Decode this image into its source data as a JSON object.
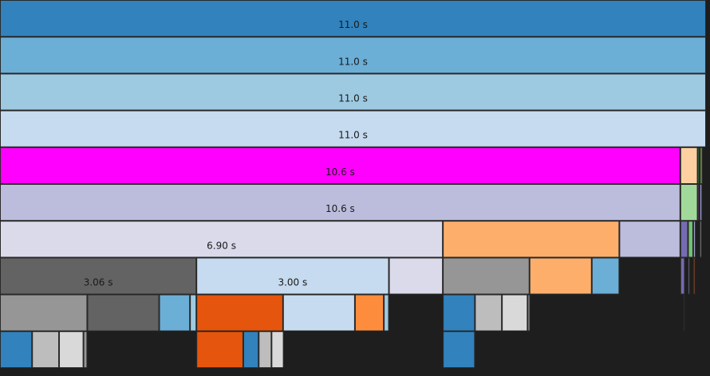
{
  "chart_data": {
    "type": "flame",
    "x_total_seconds": 11.0,
    "frames": [
      {
        "depth": 0,
        "start": 0.0,
        "duration": 11.0,
        "color": "#3182bd",
        "label": "11.0 s"
      },
      {
        "depth": 1,
        "start": 0.0,
        "duration": 11.0,
        "color": "#6baed6",
        "label": "11.0 s"
      },
      {
        "depth": 2,
        "start": 0.0,
        "duration": 11.0,
        "color": "#9ecae1",
        "label": "11.0 s"
      },
      {
        "depth": 3,
        "start": 0.0,
        "duration": 11.0,
        "color": "#c6dbef",
        "label": "11.0 s"
      },
      {
        "depth": 4,
        "start": 0.0,
        "duration": 10.6,
        "color": "#ff00ff",
        "label": "10.6 s"
      },
      {
        "depth": 4,
        "start": 10.6,
        "duration": 0.27,
        "color": "#fdd0a2",
        "label": ""
      },
      {
        "depth": 4,
        "start": 10.87,
        "duration": 0.03,
        "color": "#31a354",
        "label": ""
      },
      {
        "depth": 4,
        "start": 10.9,
        "duration": 0.05,
        "color": "#637939",
        "label": ""
      },
      {
        "depth": 5,
        "start": 0.0,
        "duration": 10.6,
        "color": "#bcbddc",
        "label": "10.6 s"
      },
      {
        "depth": 5,
        "start": 10.6,
        "duration": 0.27,
        "color": "#a1d99b",
        "label": ""
      },
      {
        "depth": 5,
        "start": 10.87,
        "duration": 0.03,
        "color": "#7b4173",
        "label": ""
      },
      {
        "depth": 5,
        "start": 10.9,
        "duration": 0.04,
        "color": "#9c9ede",
        "label": ""
      },
      {
        "depth": 6,
        "start": 0.0,
        "duration": 6.9,
        "color": "#dadaeb",
        "label": "6.90 s"
      },
      {
        "depth": 6,
        "start": 6.9,
        "duration": 2.75,
        "color": "#fdae6b",
        "label": ""
      },
      {
        "depth": 6,
        "start": 9.65,
        "duration": 0.95,
        "color": "#bcbddc",
        "label": ""
      },
      {
        "depth": 6,
        "start": 10.6,
        "duration": 0.12,
        "color": "#756bb1",
        "label": ""
      },
      {
        "depth": 6,
        "start": 10.72,
        "duration": 0.08,
        "color": "#74c476",
        "label": ""
      },
      {
        "depth": 6,
        "start": 10.8,
        "duration": 0.04,
        "color": "#9e9ac8",
        "label": ""
      },
      {
        "depth": 6,
        "start": 10.9,
        "duration": 0.03,
        "color": "#d9d9d9",
        "label": ""
      },
      {
        "depth": 7,
        "start": 0.0,
        "duration": 3.06,
        "color": "#636363",
        "label": "3.06 s"
      },
      {
        "depth": 7,
        "start": 3.06,
        "duration": 3.0,
        "color": "#c6dbef",
        "label": "3.00 s"
      },
      {
        "depth": 7,
        "start": 6.06,
        "duration": 0.84,
        "color": "#dadaeb",
        "label": ""
      },
      {
        "depth": 7,
        "start": 6.9,
        "duration": 1.35,
        "color": "#969696",
        "label": ""
      },
      {
        "depth": 7,
        "start": 8.25,
        "duration": 0.97,
        "color": "#fdae6b",
        "label": ""
      },
      {
        "depth": 7,
        "start": 9.22,
        "duration": 0.43,
        "color": "#6baed6",
        "label": ""
      },
      {
        "depth": 7,
        "start": 10.6,
        "duration": 0.07,
        "color": "#756bb1",
        "label": ""
      },
      {
        "depth": 7,
        "start": 10.72,
        "duration": 0.03,
        "color": "#9e9ac8",
        "label": ""
      },
      {
        "depth": 7,
        "start": 10.8,
        "duration": 0.03,
        "color": "#e6550d",
        "label": ""
      },
      {
        "depth": 8,
        "start": 0.0,
        "duration": 1.36,
        "color": "#969696",
        "label": ""
      },
      {
        "depth": 8,
        "start": 1.36,
        "duration": 1.12,
        "color": "#636363",
        "label": ""
      },
      {
        "depth": 8,
        "start": 2.48,
        "duration": 0.48,
        "color": "#6baed6",
        "label": ""
      },
      {
        "depth": 8,
        "start": 2.96,
        "duration": 0.1,
        "color": "#9ecae1",
        "label": ""
      },
      {
        "depth": 8,
        "start": 3.06,
        "duration": 1.35,
        "color": "#e6550d",
        "label": ""
      },
      {
        "depth": 8,
        "start": 4.41,
        "duration": 1.12,
        "color": "#c6dbef",
        "label": ""
      },
      {
        "depth": 8,
        "start": 5.53,
        "duration": 0.45,
        "color": "#fd8d3c",
        "label": ""
      },
      {
        "depth": 8,
        "start": 5.98,
        "duration": 0.08,
        "color": "#9ecae1",
        "label": ""
      },
      {
        "depth": 8,
        "start": 6.9,
        "duration": 0.5,
        "color": "#3182bd",
        "label": ""
      },
      {
        "depth": 8,
        "start": 7.4,
        "duration": 0.42,
        "color": "#bdbdbd",
        "label": ""
      },
      {
        "depth": 8,
        "start": 7.82,
        "duration": 0.4,
        "color": "#d9d9d9",
        "label": ""
      },
      {
        "depth": 8,
        "start": 8.22,
        "duration": 0.04,
        "color": "#969696",
        "label": ""
      },
      {
        "depth": 8,
        "start": 10.65,
        "duration": 0.02,
        "color": "#9e9ac8",
        "label": ""
      },
      {
        "depth": 9,
        "start": 0.0,
        "duration": 0.5,
        "color": "#3182bd",
        "label": ""
      },
      {
        "depth": 9,
        "start": 0.5,
        "duration": 0.42,
        "color": "#bdbdbd",
        "label": ""
      },
      {
        "depth": 9,
        "start": 0.92,
        "duration": 0.38,
        "color": "#d9d9d9",
        "label": ""
      },
      {
        "depth": 9,
        "start": 1.3,
        "duration": 0.06,
        "color": "#969696",
        "label": ""
      },
      {
        "depth": 9,
        "start": 3.06,
        "duration": 0.73,
        "color": "#e6550d",
        "label": ""
      },
      {
        "depth": 9,
        "start": 3.79,
        "duration": 0.24,
        "color": "#3182bd",
        "label": ""
      },
      {
        "depth": 9,
        "start": 4.03,
        "duration": 0.2,
        "color": "#bdbdbd",
        "label": ""
      },
      {
        "depth": 9,
        "start": 4.23,
        "duration": 0.19,
        "color": "#d9d9d9",
        "label": ""
      },
      {
        "depth": 9,
        "start": 6.9,
        "duration": 0.5,
        "color": "#3182bd",
        "label": ""
      }
    ]
  }
}
